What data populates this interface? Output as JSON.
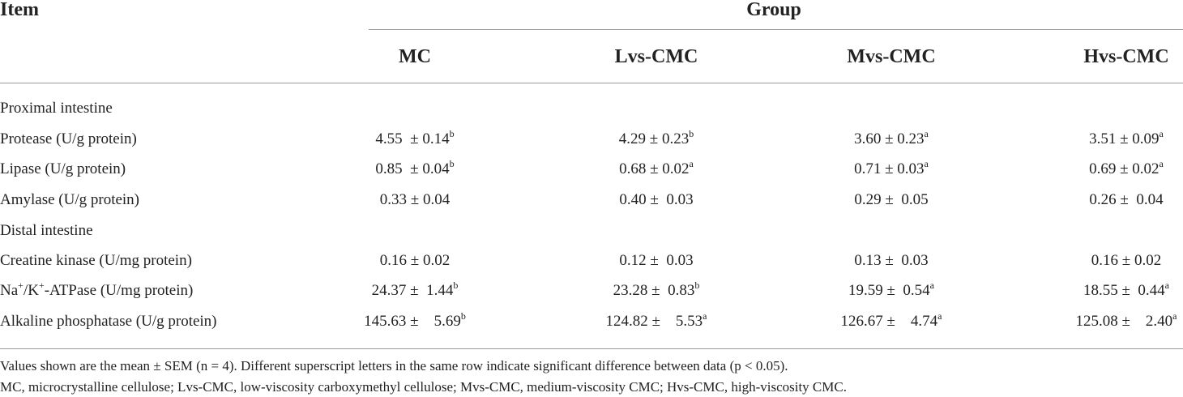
{
  "header": {
    "item": "Item",
    "group": "Group",
    "columns": [
      "MC",
      "Lvs-CMC",
      "Mvs-CMC",
      "Hvs-CMC"
    ]
  },
  "rows": [
    {
      "section": "Proximal intestine"
    },
    {
      "label": "Protease (U/g protein)",
      "cells": [
        {
          "text": "4.55  ± 0.14",
          "sup": "b"
        },
        {
          "text": "4.29 ± 0.23",
          "sup": "b"
        },
        {
          "text": "3.60 ± 0.23",
          "sup": "a"
        },
        {
          "text": "3.51 ± 0.09",
          "sup": "a"
        }
      ]
    },
    {
      "label": "Lipase (U/g protein)",
      "cells": [
        {
          "text": "0.85  ± 0.04",
          "sup": "b"
        },
        {
          "text": "0.68 ± 0.02",
          "sup": "a"
        },
        {
          "text": "0.71 ± 0.03",
          "sup": "a"
        },
        {
          "text": "0.69 ± 0.02",
          "sup": "a"
        }
      ]
    },
    {
      "label": "Amylase (U/g protein)",
      "cells": [
        {
          "text": "0.33 ± 0.04"
        },
        {
          "text": "0.40 ±  0.03"
        },
        {
          "text": "0.29 ±  0.05"
        },
        {
          "text": "0.26 ±  0.04"
        }
      ]
    },
    {
      "section": "Distal intestine"
    },
    {
      "label": "Creatine kinase (U/mg protein)",
      "cells": [
        {
          "text": "0.16 ± 0.02"
        },
        {
          "text": "0.12 ±  0.03"
        },
        {
          "text": "0.13 ±  0.03"
        },
        {
          "text": "0.16 ± 0.02"
        }
      ]
    },
    {
      "label_parts": [
        {
          "text": "Na"
        },
        {
          "sup": "+"
        },
        {
          "text": "/K"
        },
        {
          "sup": "+"
        },
        {
          "text": "-ATPase (U/mg protein)"
        }
      ],
      "cells": [
        {
          "text": "24.37 ±  1.44",
          "sup": "b"
        },
        {
          "text": "23.28 ±  0.83",
          "sup": "b"
        },
        {
          "text": "19.59 ±  0.54",
          "sup": "a"
        },
        {
          "text": "18.55 ±  0.44",
          "sup": "a"
        }
      ]
    },
    {
      "label": "Alkaline phosphatase (U/g protein)",
      "cells": [
        {
          "text": "145.63 ±    5.69",
          "sup": "b"
        },
        {
          "text": "124.82 ±    5.53",
          "sup": "a"
        },
        {
          "text": "126.67 ±    4.74",
          "sup": "a"
        },
        {
          "text": "125.08 ±    2.40",
          "sup": "a"
        }
      ]
    }
  ],
  "footnotes": [
    "Values shown are the mean ± SEM (n = 4). Different superscript letters in the same row indicate significant difference between data (p < 0.05).",
    "MC, microcrystalline cellulose; Lvs-CMC, low-viscosity carboxymethyl cellulose; Mvs-CMC, medium-viscosity CMC; Hvs-CMC, high-viscosity CMC."
  ]
}
